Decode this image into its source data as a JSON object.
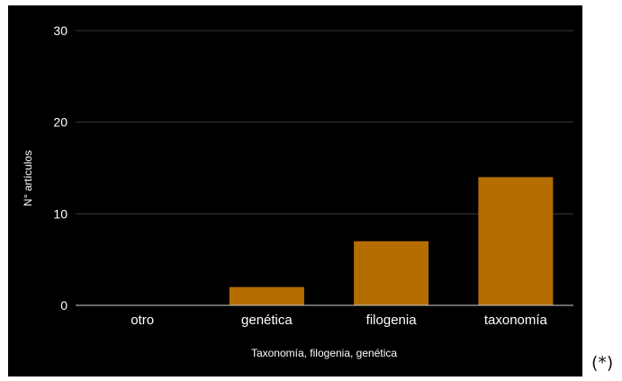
{
  "chart_data": {
    "type": "bar",
    "categories": [
      "otro",
      "genética",
      "filogenia",
      "taxonomía"
    ],
    "values": [
      0,
      2,
      7,
      14
    ],
    "xlabel": "Taxonomía, filogenia, genética",
    "ylabel": "N° artículos",
    "ylim": [
      0,
      30
    ],
    "yticks": [
      0,
      10,
      20,
      30
    ],
    "grid": true,
    "legend": "none",
    "colors": {
      "background": "#000000",
      "bar": "#b56d00",
      "gridline": "#3a3a3a",
      "text": "#ffffff"
    }
  },
  "footnote": "(*)"
}
